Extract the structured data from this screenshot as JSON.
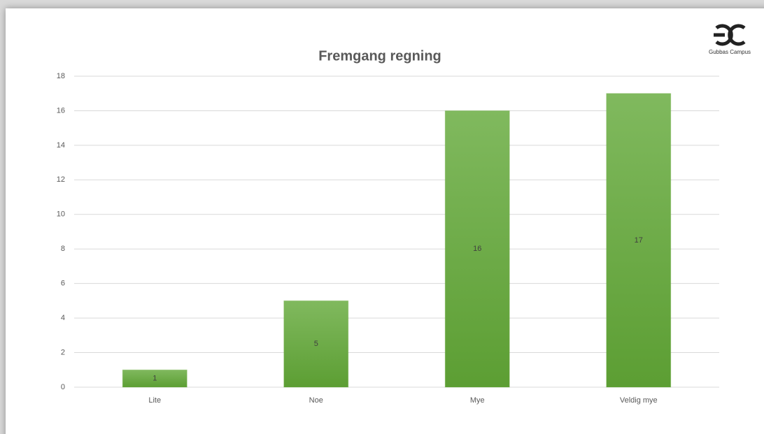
{
  "brand": "Gubbas Campus",
  "chart_data": {
    "type": "bar",
    "title": "Fremgang regning",
    "categories": [
      "Lite",
      "Noe",
      "Mye",
      "Veldig mye"
    ],
    "values": [
      1,
      5,
      16,
      17
    ],
    "color": "#6fae45",
    "ylim": [
      0,
      18
    ],
    "yticks": [
      0,
      2,
      4,
      6,
      8,
      10,
      12,
      14,
      16,
      18
    ],
    "grid": true,
    "data_labels": true
  }
}
